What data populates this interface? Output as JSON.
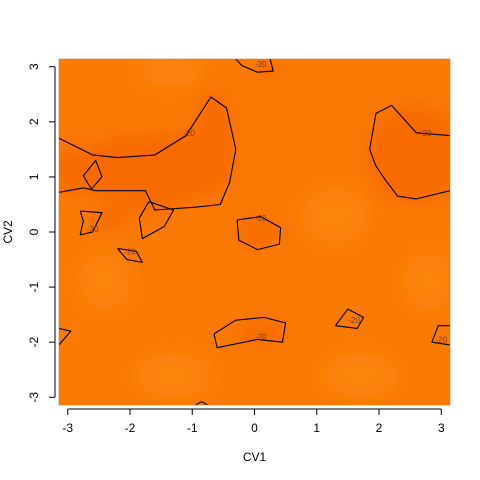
{
  "chart_data": {
    "type": "heatmap",
    "title": "",
    "xlabel": "CV1",
    "ylabel": "CV2",
    "xlim": [
      -3.14,
      3.14
    ],
    "ylim": [
      -3.14,
      3.14
    ],
    "x_ticks": [
      -3,
      -2,
      -1,
      0,
      1,
      2,
      3
    ],
    "y_ticks": [
      -3,
      -2,
      -1,
      0,
      1,
      2,
      3
    ],
    "base_color": "#fa7a06",
    "contour_level": -20,
    "contour_color": "#000000",
    "regions": [
      {
        "cx": 0.2,
        "cy": 3.0,
        "rx": 0.25,
        "ry": 0.15,
        "color": "#f76a04"
      },
      {
        "cx": 2.6,
        "cy": 1.4,
        "rx": 0.8,
        "ry": 0.9,
        "color": "#f76a04"
      },
      {
        "cx": 0.05,
        "cy": 0.0,
        "rx": 0.35,
        "ry": 0.25,
        "color": "#f76a04"
      },
      {
        "cx": -1.6,
        "cy": 1.15,
        "rx": 1.3,
        "ry": 0.65,
        "color": "#f76a04"
      },
      {
        "cx": -2.9,
        "cy": 1.1,
        "rx": 0.35,
        "ry": 0.45,
        "color": "#f76a04"
      },
      {
        "cx": -0.65,
        "cy": 1.7,
        "rx": 0.3,
        "ry": 0.9,
        "color": "#f76a04"
      },
      {
        "cx": 0.1,
        "cy": -1.8,
        "rx": 0.45,
        "ry": 0.18,
        "color": "#f76a04"
      },
      {
        "cx": -2.3,
        "cy": 0.25,
        "rx": 0.3,
        "ry": 0.2,
        "color": "#f76a04"
      },
      {
        "cx": -1.7,
        "cy": 0.5,
        "rx": 0.35,
        "ry": 0.15,
        "color": "#f76a04"
      },
      {
        "cx": -1.35,
        "cy": 2.9,
        "rx": 0.5,
        "ry": 0.25,
        "color": "#fb8407"
      },
      {
        "cx": -2.4,
        "cy": -0.9,
        "rx": 0.4,
        "ry": 0.5,
        "color": "#fb8407"
      },
      {
        "cx": 1.3,
        "cy": 0.3,
        "rx": 0.5,
        "ry": 0.5,
        "color": "#fb8407"
      },
      {
        "cx": 1.7,
        "cy": -2.6,
        "rx": 0.6,
        "ry": 0.4,
        "color": "#fb8407"
      },
      {
        "cx": -1.3,
        "cy": -2.6,
        "rx": 0.6,
        "ry": 0.4,
        "color": "#fb8407"
      },
      {
        "cx": 2.8,
        "cy": -0.9,
        "rx": 0.4,
        "ry": 0.5,
        "color": "#fb8407"
      }
    ],
    "contours": [
      {
        "label": "-20",
        "label_at": [
          0.1,
          3.05
        ],
        "points": [
          [
            -0.3,
            3.14
          ],
          [
            -0.2,
            3.02
          ],
          [
            0.05,
            2.9
          ],
          [
            0.3,
            2.92
          ],
          [
            0.25,
            3.14
          ]
        ]
      },
      {
        "label": "-20",
        "label_at": [
          2.75,
          1.8
        ],
        "points": [
          [
            3.14,
            1.75
          ],
          [
            2.6,
            1.8
          ],
          [
            2.2,
            2.3
          ],
          [
            1.95,
            2.15
          ],
          [
            1.85,
            1.5
          ],
          [
            1.95,
            1.2
          ],
          [
            2.1,
            0.95
          ],
          [
            2.3,
            0.65
          ],
          [
            2.6,
            0.6
          ],
          [
            3.14,
            0.75
          ]
        ]
      },
      {
        "label": "-20",
        "label_at": [
          0.1,
          0.25
        ],
        "points": [
          [
            -0.28,
            0.22
          ],
          [
            0.1,
            0.28
          ],
          [
            0.42,
            0.08
          ],
          [
            0.4,
            -0.22
          ],
          [
            0.05,
            -0.32
          ],
          [
            -0.25,
            -0.15
          ],
          [
            -0.28,
            0.22
          ]
        ]
      },
      {
        "label": "-20",
        "label_at": [
          -1.05,
          1.8
        ],
        "points": [
          [
            -3.14,
            1.7
          ],
          [
            -2.6,
            1.4
          ],
          [
            -2.2,
            1.35
          ],
          [
            -1.6,
            1.4
          ],
          [
            -1.1,
            1.75
          ],
          [
            -0.7,
            2.45
          ],
          [
            -0.45,
            2.25
          ],
          [
            -0.3,
            1.5
          ],
          [
            -0.4,
            0.9
          ],
          [
            -0.55,
            0.5
          ],
          [
            -0.95,
            0.45
          ],
          [
            -1.6,
            0.4
          ],
          [
            -1.75,
            0.75
          ],
          [
            -2.55,
            0.75
          ],
          [
            -2.75,
            0.8
          ],
          [
            -3.14,
            0.72
          ]
        ]
      },
      {
        "label": "",
        "label_at": null,
        "points": [
          [
            -2.55,
            1.3
          ],
          [
            -2.45,
            1.0
          ],
          [
            -2.62,
            0.78
          ],
          [
            -2.75,
            1.02
          ],
          [
            -2.55,
            1.3
          ]
        ]
      },
      {
        "label": "-20",
        "label_at": [
          -2.6,
          0.05
        ],
        "points": [
          [
            -2.8,
            0.38
          ],
          [
            -2.45,
            0.35
          ],
          [
            -2.6,
            0.0
          ],
          [
            -2.8,
            -0.05
          ],
          [
            -2.75,
            0.2
          ],
          [
            -2.8,
            0.38
          ]
        ]
      },
      {
        "label": "",
        "label_at": null,
        "points": [
          [
            -1.7,
            0.55
          ],
          [
            -1.3,
            0.4
          ],
          [
            -1.45,
            0.1
          ],
          [
            -1.8,
            -0.12
          ],
          [
            -1.85,
            0.25
          ],
          [
            -1.7,
            0.55
          ]
        ]
      },
      {
        "label": "-20",
        "label_at": [
          -2.0,
          -0.35
        ],
        "points": [
          [
            -2.2,
            -0.3
          ],
          [
            -1.9,
            -0.35
          ],
          [
            -1.8,
            -0.55
          ],
          [
            -2.05,
            -0.5
          ],
          [
            -2.2,
            -0.3
          ]
        ]
      },
      {
        "label": "-20",
        "label_at": [
          0.1,
          -1.9
        ],
        "points": [
          [
            -0.65,
            -1.85
          ],
          [
            -0.3,
            -1.6
          ],
          [
            0.15,
            -1.55
          ],
          [
            0.5,
            -1.65
          ],
          [
            0.45,
            -2.0
          ],
          [
            0.05,
            -1.95
          ],
          [
            -0.6,
            -2.1
          ],
          [
            -0.65,
            -1.85
          ]
        ]
      },
      {
        "label": "-20",
        "label_at": [
          1.6,
          -1.6
        ],
        "points": [
          [
            1.3,
            -1.7
          ],
          [
            1.5,
            -1.4
          ],
          [
            1.75,
            -1.55
          ],
          [
            1.65,
            -1.75
          ],
          [
            1.3,
            -1.7
          ]
        ]
      },
      {
        "label": "-20",
        "label_at": [
          3.0,
          -1.95
        ],
        "points": [
          [
            3.14,
            -1.7
          ],
          [
            2.95,
            -1.7
          ],
          [
            2.85,
            -2.0
          ],
          [
            3.14,
            -2.05
          ]
        ]
      },
      {
        "label": "",
        "label_at": null,
        "points": [
          [
            -3.14,
            -1.75
          ],
          [
            -2.95,
            -1.8
          ],
          [
            -3.14,
            -2.05
          ]
        ]
      },
      {
        "label": "",
        "label_at": null,
        "points": [
          [
            -0.95,
            -3.14
          ],
          [
            -0.85,
            -3.08
          ],
          [
            -0.75,
            -3.14
          ]
        ]
      }
    ]
  }
}
